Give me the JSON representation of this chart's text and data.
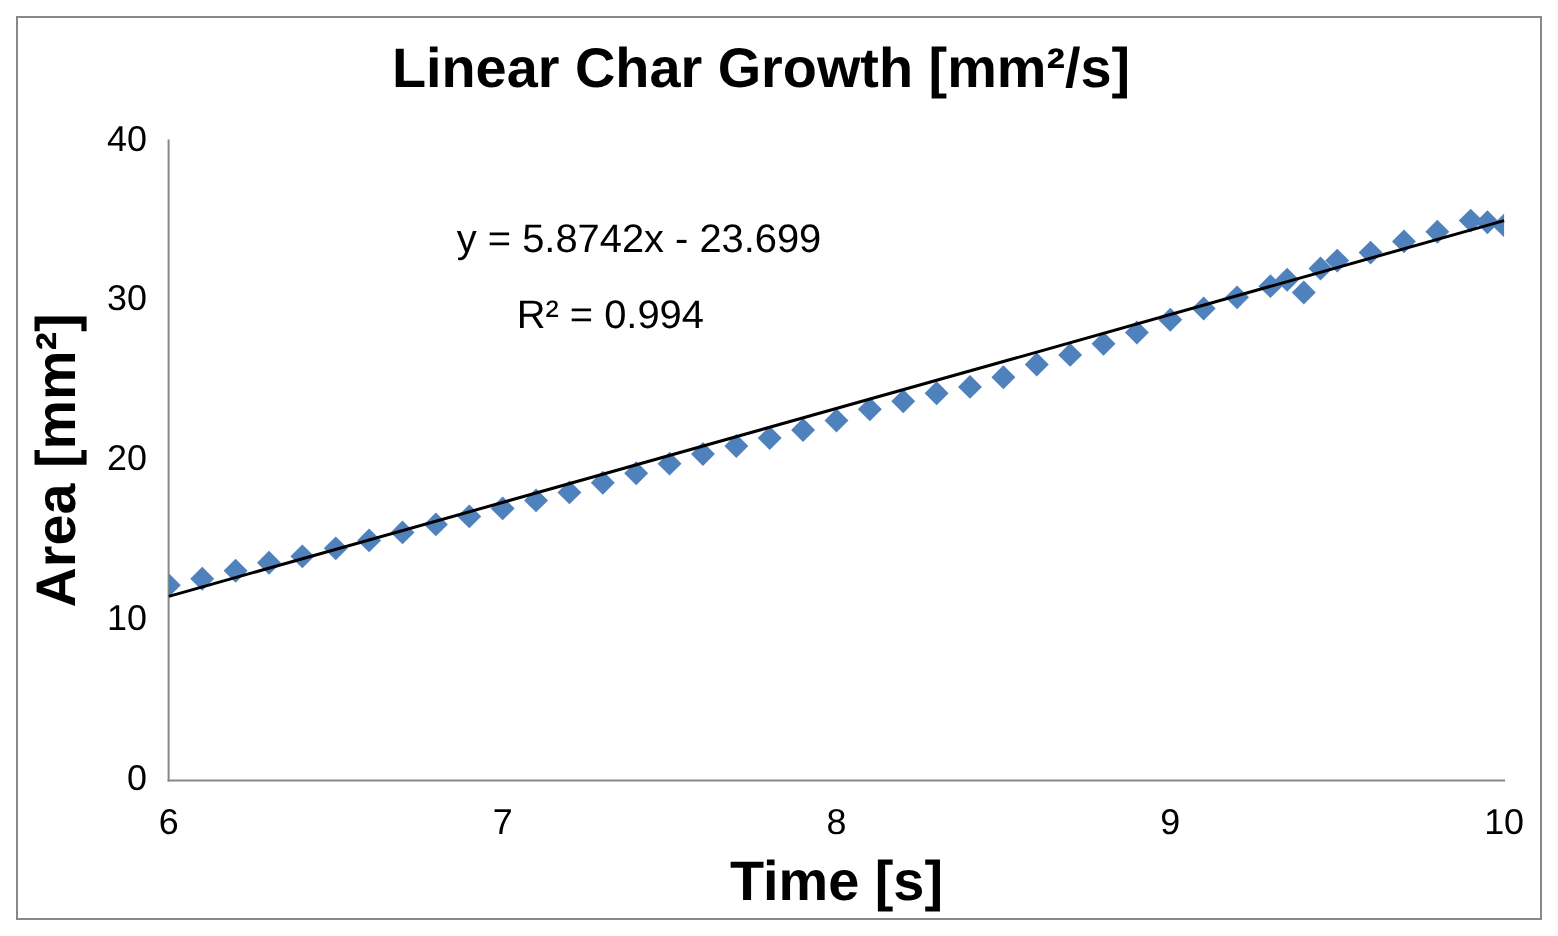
{
  "chart_data": {
    "type": "scatter",
    "title": "Linear Char Growth [mm²/s]",
    "xlabel": "Time [s]",
    "ylabel": "Area [mm²]",
    "annotations": [
      "y = 5.8742x - 23.699",
      "R² = 0.994"
    ],
    "xlim": [
      6,
      10
    ],
    "xticks": [
      6,
      7,
      8,
      9,
      10
    ],
    "ylim": [
      0,
      40
    ],
    "yticks": [
      0,
      10,
      20,
      30,
      40
    ],
    "grid": false,
    "legend": false,
    "marker": "diamond",
    "series": [
      {
        "color": "#4f81bd",
        "x": [
          6.0,
          6.1,
          6.2,
          6.3,
          6.4,
          6.5,
          6.6,
          6.7,
          6.8,
          6.9,
          7.0,
          7.1,
          7.2,
          7.3,
          7.4,
          7.5,
          7.6,
          7.7,
          7.8,
          7.9,
          8.0,
          8.1,
          8.2,
          8.3,
          8.4,
          8.5,
          8.6,
          8.7,
          8.8,
          8.9,
          9.0,
          9.1,
          9.2,
          9.3,
          9.35,
          9.4,
          9.45,
          9.5,
          9.6,
          9.7,
          9.8,
          9.9,
          9.95,
          10.0
        ],
        "values": [
          12.2,
          12.6,
          13.1,
          13.6,
          14.0,
          14.5,
          15.0,
          15.5,
          16.0,
          16.5,
          17.0,
          17.5,
          18.0,
          18.6,
          19.2,
          19.8,
          20.4,
          20.9,
          21.4,
          21.9,
          22.5,
          23.2,
          23.7,
          24.2,
          24.6,
          25.2,
          26.0,
          26.6,
          27.3,
          28.0,
          28.8,
          29.5,
          30.2,
          30.9,
          31.3,
          30.5,
          32.0,
          32.5,
          33.0,
          33.7,
          34.3,
          35.0,
          34.9,
          34.7
        ]
      },
      {
        "type": "line",
        "marker": "none",
        "color": "#000000",
        "x": [
          6,
          10
        ],
        "values": [
          11.5,
          35.0
        ]
      }
    ]
  }
}
